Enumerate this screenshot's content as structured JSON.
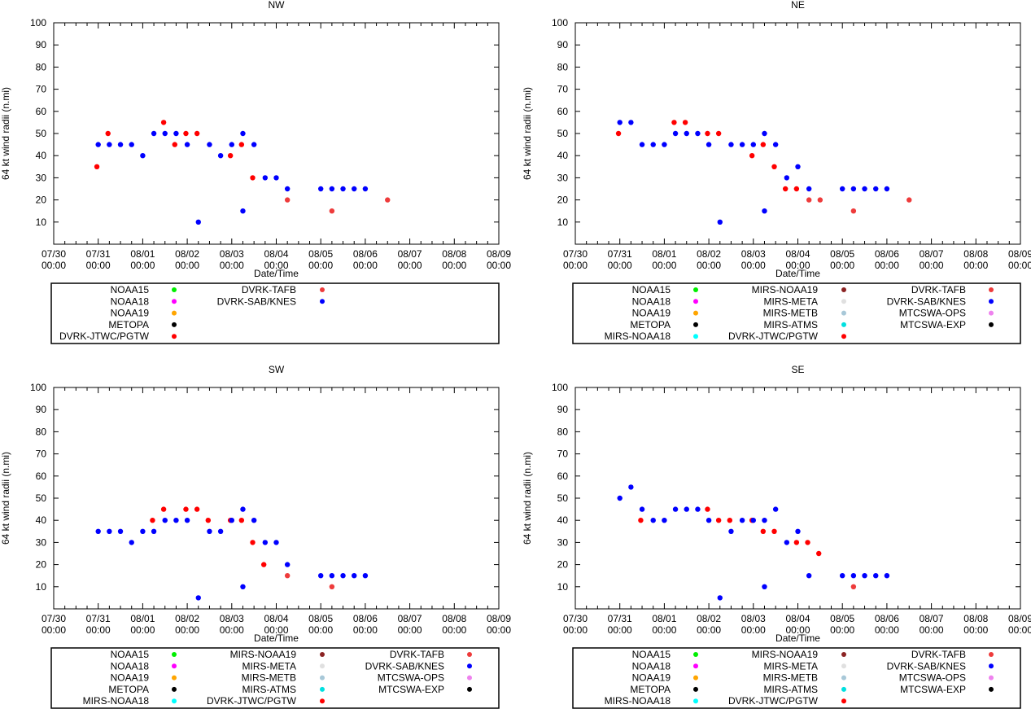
{
  "colors": {
    "NOAA15": "#00ee00",
    "NOAA18": "#ff00ff",
    "NOAA19": "#ffa500",
    "METOPA": "#000000",
    "MIRS-NOAA18": "#00ffff",
    "MIRS-NOAA19": "#8b2323",
    "MIRS-META": "#e0e0e0",
    "MIRS-METB": "#a8c8d8",
    "MIRS-ATMS": "#00e0e0",
    "DVRK-JTWC/PGTW": "#ff0000",
    "DVRK-TAFB": "#ee3b3b",
    "DVRK-SAB/KNES": "#0000ff",
    "MTCSWA-OPS": "#ee82ee",
    "MTCSWA-EXP": "#000000"
  },
  "chart_data": [
    {
      "type": "scatter",
      "title": "NW",
      "xlabel": "Date/Time",
      "ylabel": "64 kt wind radii (n.mi)",
      "xlim": [
        0,
        10
      ],
      "ylim": [
        0,
        100
      ],
      "yticks": [
        10,
        20,
        30,
        40,
        50,
        60,
        70,
        80,
        90,
        100
      ],
      "xticks": [
        {
          "date": "07/30",
          "time": "00:00"
        },
        {
          "date": "07/31",
          "time": "00:00"
        },
        {
          "date": "08/01",
          "time": "00:00"
        },
        {
          "date": "08/02",
          "time": "00:00"
        },
        {
          "date": "08/03",
          "time": "00:00"
        },
        {
          "date": "08/04",
          "time": "00:00"
        },
        {
          "date": "08/05",
          "time": "00:00"
        },
        {
          "date": "08/06",
          "time": "00:00"
        },
        {
          "date": "08/07",
          "time": "00:00"
        },
        {
          "date": "08/08",
          "time": "00:00"
        },
        {
          "date": "08/09",
          "time": "00:00"
        }
      ],
      "legend": {
        "columns": [
          [
            "NOAA15",
            "NOAA18",
            "NOAA19",
            "METOPA",
            "DVRK-JTWC/PGTW"
          ],
          [
            "DVRK-TAFB",
            "DVRK-SAB/KNES"
          ]
        ]
      },
      "series": [
        {
          "name": "DVRK-JTWC/PGTW",
          "points": [
            [
              0.97,
              35
            ],
            [
              1.22,
              50
            ],
            [
              2.47,
              55
            ],
            [
              2.72,
              45
            ],
            [
              2.97,
              50
            ],
            [
              3.22,
              50
            ],
            [
              3.97,
              40
            ],
            [
              4.22,
              45
            ],
            [
              4.47,
              30
            ]
          ]
        },
        {
          "name": "DVRK-TAFB",
          "points": [
            [
              5.25,
              20
            ],
            [
              6.25,
              15
            ],
            [
              7.5,
              20
            ]
          ]
        },
        {
          "name": "DVRK-SAB/KNES",
          "points": [
            [
              1.0,
              45
            ],
            [
              1.25,
              45
            ],
            [
              1.5,
              45
            ],
            [
              1.75,
              45
            ],
            [
              2.0,
              40
            ],
            [
              2.25,
              50
            ],
            [
              2.5,
              50
            ],
            [
              2.75,
              50
            ],
            [
              3.0,
              45
            ],
            [
              3.25,
              10
            ],
            [
              3.5,
              45
            ],
            [
              3.75,
              40
            ],
            [
              4.0,
              45
            ],
            [
              4.25,
              50
            ],
            [
              4.25,
              15
            ],
            [
              4.5,
              45
            ],
            [
              4.75,
              30
            ],
            [
              5.0,
              30
            ],
            [
              5.25,
              25
            ],
            [
              6.0,
              25
            ],
            [
              6.25,
              25
            ],
            [
              6.5,
              25
            ],
            [
              6.75,
              25
            ],
            [
              7.0,
              25
            ]
          ]
        }
      ]
    },
    {
      "type": "scatter",
      "title": "NE",
      "xlabel": "Date/Time",
      "ylabel": "64 kt wind radii (n.mi)",
      "xlim": [
        0,
        10
      ],
      "ylim": [
        0,
        100
      ],
      "yticks": [
        10,
        20,
        30,
        40,
        50,
        60,
        70,
        80,
        90,
        100
      ],
      "xticks": [
        {
          "date": "07/30",
          "time": "00:00"
        },
        {
          "date": "07/31",
          "time": "00:00"
        },
        {
          "date": "08/01",
          "time": "00:00"
        },
        {
          "date": "08/02",
          "time": "00:00"
        },
        {
          "date": "08/03",
          "time": "00:00"
        },
        {
          "date": "08/04",
          "time": "00:00"
        },
        {
          "date": "08/05",
          "time": "00:00"
        },
        {
          "date": "08/06",
          "time": "00:00"
        },
        {
          "date": "08/07",
          "time": "00:00"
        },
        {
          "date": "08/08",
          "time": "00:00"
        },
        {
          "date": "08/09",
          "time": "00:00"
        }
      ],
      "legend": {
        "columns": [
          [
            "NOAA15",
            "NOAA18",
            "NOAA19",
            "METOPA",
            "MIRS-NOAA18"
          ],
          [
            "MIRS-NOAA19",
            "MIRS-META",
            "MIRS-METB",
            "MIRS-ATMS",
            "DVRK-JTWC/PGTW"
          ],
          [
            "DVRK-TAFB",
            "DVRK-SAB/KNES",
            "MTCSWA-OPS",
            "MTCSWA-EXP"
          ]
        ]
      },
      "series": [
        {
          "name": "DVRK-JTWC/PGTW",
          "points": [
            [
              0.97,
              50
            ],
            [
              2.22,
              55
            ],
            [
              2.47,
              55
            ],
            [
              2.97,
              50
            ],
            [
              3.22,
              50
            ],
            [
              3.97,
              40
            ],
            [
              4.22,
              45
            ],
            [
              4.47,
              35
            ],
            [
              4.72,
              25
            ],
            [
              4.97,
              25
            ]
          ]
        },
        {
          "name": "DVRK-TAFB",
          "points": [
            [
              5.25,
              20
            ],
            [
              5.5,
              20
            ],
            [
              6.25,
              15
            ],
            [
              7.5,
              20
            ]
          ]
        },
        {
          "name": "DVRK-SAB/KNES",
          "points": [
            [
              1.0,
              55
            ],
            [
              1.25,
              55
            ],
            [
              1.5,
              45
            ],
            [
              1.75,
              45
            ],
            [
              2.0,
              45
            ],
            [
              2.25,
              50
            ],
            [
              2.5,
              50
            ],
            [
              2.75,
              50
            ],
            [
              3.0,
              45
            ],
            [
              3.25,
              10
            ],
            [
              3.5,
              45
            ],
            [
              3.75,
              45
            ],
            [
              4.0,
              45
            ],
            [
              4.25,
              50
            ],
            [
              4.25,
              15
            ],
            [
              4.5,
              45
            ],
            [
              4.75,
              30
            ],
            [
              5.0,
              35
            ],
            [
              5.25,
              25
            ],
            [
              6.0,
              25
            ],
            [
              6.25,
              25
            ],
            [
              6.5,
              25
            ],
            [
              6.75,
              25
            ],
            [
              7.0,
              25
            ]
          ]
        }
      ]
    },
    {
      "type": "scatter",
      "title": "SW",
      "xlabel": "Date/Time",
      "ylabel": "64 kt wind radii (n.mi)",
      "xlim": [
        0,
        10
      ],
      "ylim": [
        0,
        100
      ],
      "yticks": [
        10,
        20,
        30,
        40,
        50,
        60,
        70,
        80,
        90,
        100
      ],
      "xticks": [
        {
          "date": "07/30",
          "time": "00:00"
        },
        {
          "date": "07/31",
          "time": "00:00"
        },
        {
          "date": "08/01",
          "time": "00:00"
        },
        {
          "date": "08/02",
          "time": "00:00"
        },
        {
          "date": "08/03",
          "time": "00:00"
        },
        {
          "date": "08/04",
          "time": "00:00"
        },
        {
          "date": "08/05",
          "time": "00:00"
        },
        {
          "date": "08/06",
          "time": "00:00"
        },
        {
          "date": "08/07",
          "time": "00:00"
        },
        {
          "date": "08/08",
          "time": "00:00"
        },
        {
          "date": "08/09",
          "time": "00:00"
        }
      ],
      "legend": {
        "columns": [
          [
            "NOAA15",
            "NOAA18",
            "NOAA19",
            "METOPA",
            "MIRS-NOAA18"
          ],
          [
            "MIRS-NOAA19",
            "MIRS-META",
            "MIRS-METB",
            "MIRS-ATMS",
            "DVRK-JTWC/PGTW"
          ],
          [
            "DVRK-TAFB",
            "DVRK-SAB/KNES",
            "MTCSWA-OPS",
            "MTCSWA-EXP"
          ]
        ]
      },
      "series": [
        {
          "name": "DVRK-JTWC/PGTW",
          "points": [
            [
              2.22,
              40
            ],
            [
              2.47,
              45
            ],
            [
              2.97,
              45
            ],
            [
              3.22,
              45
            ],
            [
              3.47,
              40
            ],
            [
              3.97,
              40
            ],
            [
              4.22,
              40
            ],
            [
              4.47,
              30
            ],
            [
              4.72,
              20
            ]
          ]
        },
        {
          "name": "DVRK-TAFB",
          "points": [
            [
              5.25,
              15
            ],
            [
              6.25,
              10
            ]
          ]
        },
        {
          "name": "DVRK-SAB/KNES",
          "points": [
            [
              1.0,
              35
            ],
            [
              1.25,
              35
            ],
            [
              1.5,
              35
            ],
            [
              1.75,
              30
            ],
            [
              2.0,
              35
            ],
            [
              2.25,
              35
            ],
            [
              2.5,
              40
            ],
            [
              2.75,
              40
            ],
            [
              3.0,
              40
            ],
            [
              3.25,
              5
            ],
            [
              3.5,
              35
            ],
            [
              3.75,
              35
            ],
            [
              4.0,
              40
            ],
            [
              4.25,
              45
            ],
            [
              4.25,
              10
            ],
            [
              4.5,
              40
            ],
            [
              4.75,
              30
            ],
            [
              5.0,
              30
            ],
            [
              5.25,
              20
            ],
            [
              6.0,
              15
            ],
            [
              6.25,
              15
            ],
            [
              6.5,
              15
            ],
            [
              6.75,
              15
            ],
            [
              7.0,
              15
            ]
          ]
        }
      ]
    },
    {
      "type": "scatter",
      "title": "SE",
      "xlabel": "Date/Time",
      "ylabel": "64 kt wind radii (n.mi)",
      "xlim": [
        0,
        10
      ],
      "ylim": [
        0,
        100
      ],
      "yticks": [
        10,
        20,
        30,
        40,
        50,
        60,
        70,
        80,
        90,
        100
      ],
      "xticks": [
        {
          "date": "07/30",
          "time": "00:00"
        },
        {
          "date": "07/31",
          "time": "00:00"
        },
        {
          "date": "08/01",
          "time": "00:00"
        },
        {
          "date": "08/02",
          "time": "00:00"
        },
        {
          "date": "08/03",
          "time": "00:00"
        },
        {
          "date": "08/04",
          "time": "00:00"
        },
        {
          "date": "08/05",
          "time": "00:00"
        },
        {
          "date": "08/06",
          "time": "00:00"
        },
        {
          "date": "08/07",
          "time": "00:00"
        },
        {
          "date": "08/08",
          "time": "00:00"
        },
        {
          "date": "08/09",
          "time": "00:00"
        }
      ],
      "legend": {
        "columns": [
          [
            "NOAA15",
            "NOAA18",
            "NOAA19",
            "METOPA",
            "MIRS-NOAA18"
          ],
          [
            "MIRS-NOAA19",
            "MIRS-META",
            "MIRS-METB",
            "MIRS-ATMS",
            "DVRK-JTWC/PGTW"
          ],
          [
            "DVRK-TAFB",
            "DVRK-SAB/KNES",
            "MTCSWA-OPS",
            "MTCSWA-EXP"
          ]
        ]
      },
      "series": [
        {
          "name": "DVRK-JTWC/PGTW",
          "points": [
            [
              1.47,
              40
            ],
            [
              2.97,
              45
            ],
            [
              3.22,
              40
            ],
            [
              3.47,
              40
            ],
            [
              3.97,
              40
            ],
            [
              4.22,
              35
            ],
            [
              4.47,
              35
            ],
            [
              4.97,
              30
            ],
            [
              5.22,
              30
            ],
            [
              5.47,
              25
            ]
          ]
        },
        {
          "name": "DVRK-TAFB",
          "points": [
            [
              6.25,
              10
            ]
          ]
        },
        {
          "name": "DVRK-SAB/KNES",
          "points": [
            [
              1.0,
              50
            ],
            [
              1.25,
              55
            ],
            [
              1.5,
              45
            ],
            [
              1.75,
              40
            ],
            [
              2.0,
              40
            ],
            [
              2.25,
              45
            ],
            [
              2.5,
              45
            ],
            [
              2.75,
              45
            ],
            [
              3.0,
              40
            ],
            [
              3.25,
              5
            ],
            [
              3.5,
              35
            ],
            [
              3.75,
              40
            ],
            [
              4.0,
              40
            ],
            [
              4.25,
              40
            ],
            [
              4.25,
              10
            ],
            [
              4.5,
              45
            ],
            [
              4.75,
              30
            ],
            [
              5.0,
              35
            ],
            [
              5.25,
              15
            ],
            [
              6.0,
              15
            ],
            [
              6.25,
              15
            ],
            [
              6.5,
              15
            ],
            [
              6.75,
              15
            ],
            [
              7.0,
              15
            ]
          ]
        }
      ]
    }
  ]
}
